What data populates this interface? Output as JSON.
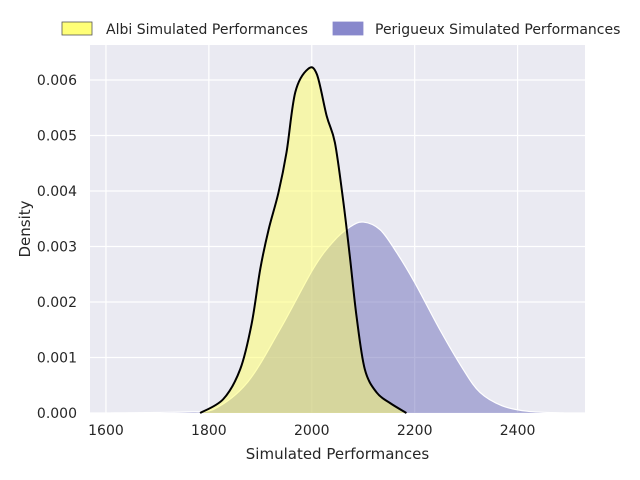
{
  "chart_data": {
    "type": "area",
    "title": "",
    "xlabel": "Simulated Performances",
    "ylabel": "Density",
    "xlim": [
      1569,
      2531
    ],
    "ylim": [
      0,
      0.00663
    ],
    "xticks": [
      1600,
      1800,
      2000,
      2200,
      2400
    ],
    "xtick_labels": [
      "1600",
      "1800",
      "2000",
      "2200",
      "2400"
    ],
    "yticks": [
      0,
      0.001,
      0.002,
      0.003,
      0.004,
      0.005,
      0.006
    ],
    "ytick_labels": [
      "0.000",
      "0.001",
      "0.002",
      "0.003",
      "0.004",
      "0.005",
      "0.006"
    ],
    "grid": true,
    "legend_position": "top-center, above plot",
    "series": [
      {
        "name": "Albi Simulated Performances",
        "color": "#ffff66",
        "edge": "#000000",
        "x": [
          1783,
          1828,
          1861,
          1883,
          1900,
          1916,
          1935,
          1951,
          1968,
          1993,
          2010,
          2029,
          2045,
          2061,
          2074,
          2087,
          2103,
          2126,
          2152,
          2184
        ],
        "y": [
          0,
          0.00025,
          0.00079,
          0.0016,
          0.0026,
          0.0033,
          0.00396,
          0.0047,
          0.00578,
          0.0062,
          0.0061,
          0.00535,
          0.00487,
          0.00383,
          0.00282,
          0.00174,
          0.00079,
          0.00037,
          0.00018,
          0
        ]
      },
      {
        "name": "Perigueux Simulated Performances",
        "color": "#7f7fc4",
        "edge": "#ffffff",
        "x": [
          1610,
          1700,
          1760,
          1808,
          1874,
          1938,
          2003,
          2041,
          2074,
          2100,
          2133,
          2165,
          2200,
          2249,
          2294,
          2327,
          2370,
          2420,
          2490
        ],
        "y": [
          0,
          1e-05,
          2e-05,
          6e-05,
          0.00054,
          0.0015,
          0.0026,
          0.00308,
          0.00335,
          0.00344,
          0.0033,
          0.00289,
          0.00235,
          0.0015,
          0.00079,
          0.00037,
          0.00013,
          3e-05,
          0
        ]
      }
    ]
  }
}
